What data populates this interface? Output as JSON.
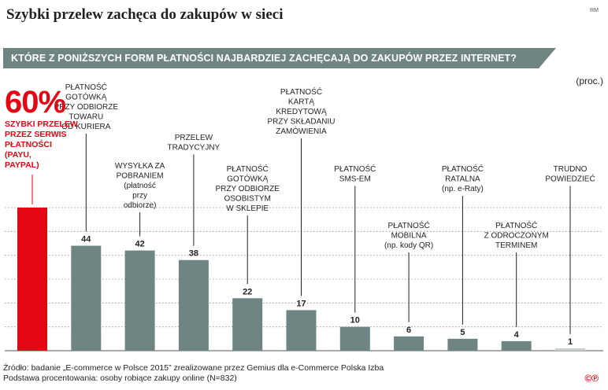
{
  "headline": "Szybki przelew zachęca do zakupów w sieci",
  "credit": "RM",
  "question": "KTÓRE Z PONIŻSZYCH FORM PŁATNOŚCI NAJBARDZIEJ ZACHĘCAJĄ DO ZAKUPÓW PRZEZ INTERNET?",
  "unit": "(proc.)",
  "highlight": {
    "value_label": "60%",
    "label": "SZYBKI PRZELEW\nPRZEZ SERWIS\nPŁATNOŚCI\n(PAYU,\nPAYPAL)"
  },
  "chart_data": {
    "type": "bar",
    "categories": [
      "SZYBKI PRZELEW PRZEZ SERWIS PŁATNOŚCI (PAYU, PAYPAL)",
      "PŁATNOŚĆ GOTÓWKĄ PRZY ODBIORZE TOWARU OD KURIERA",
      "WYSYŁKA ZA POBRANIEM (płatność przy odbiorze)",
      "PRZELEW TRADYCYJNY",
      "PŁATNOŚĆ GOTÓWKĄ PRZY ODBIORZE OSOBISTYM W SKLEPIE",
      "PŁATNOŚĆ KARTĄ KREDYTOWĄ PRZY SKŁADANIU ZAMÓWIENIA",
      "PŁATNOŚĆ SMS-EM",
      "PŁATNOŚĆ MOBILNA (np. kody QR)",
      "PŁATNOŚĆ RATALNA (np. e-Raty)",
      "PŁATNOŚĆ Z ODROCZONYM TERMINEM",
      "TRUDNO POWIEDZIEĆ"
    ],
    "values": [
      60,
      44,
      42,
      38,
      22,
      17,
      10,
      6,
      5,
      4,
      1
    ],
    "value_labels": [
      "",
      "44",
      "42",
      "38",
      "22",
      "17",
      "10",
      "6",
      "5",
      "4",
      "1"
    ],
    "label_lines": [
      [],
      [
        "PŁATNOŚĆ",
        "GOTÓWKĄ",
        "PRZY ODBIORZE",
        "TOWARU",
        "OD KURIERA"
      ],
      [
        "WYSYŁKA ZA",
        "POBRANIEM",
        "(płatność",
        "przy",
        "odbiorze)"
      ],
      [
        "PRZELEW",
        "TRADYCYJNY"
      ],
      [
        "PŁATNOŚĆ",
        "GOTÓWKĄ",
        "PRZY ODBIORZE",
        "OSOBISTYM",
        "W SKLEPIE"
      ],
      [
        "PŁATNOŚĆ",
        "KARTĄ",
        "KREDYTOWĄ",
        "PRZY SKŁADANIU",
        "ZAMÓWIENIA"
      ],
      [
        "PŁATNOŚĆ",
        "SMS-EM"
      ],
      [
        "PŁATNOŚĆ",
        "MOBILNA",
        "(np. kody QR)"
      ],
      [
        "PŁATNOŚĆ",
        "RATALNA",
        "(np. e-Raty)"
      ],
      [
        "PŁATNOŚĆ",
        "Z ODROCZONYM",
        "TERMINEM"
      ],
      [
        "TRUDNO",
        "POWIEDZIEĆ"
      ]
    ],
    "colors": {
      "highlight": "#e30613",
      "bar": "#6f8583",
      "last_bar": "#c8cfce",
      "grid": "#888888"
    },
    "ylim": [
      0,
      60
    ],
    "grid": true
  },
  "footer": {
    "source": "Źródło: badanie „E-commerce w Polsce 2015” zrealizowane przez Gemius dla e-Commerce Polska Izba",
    "base": "Podstawa procentowania: osoby robiące zakupy online (N=832)"
  },
  "logo": "©℗"
}
